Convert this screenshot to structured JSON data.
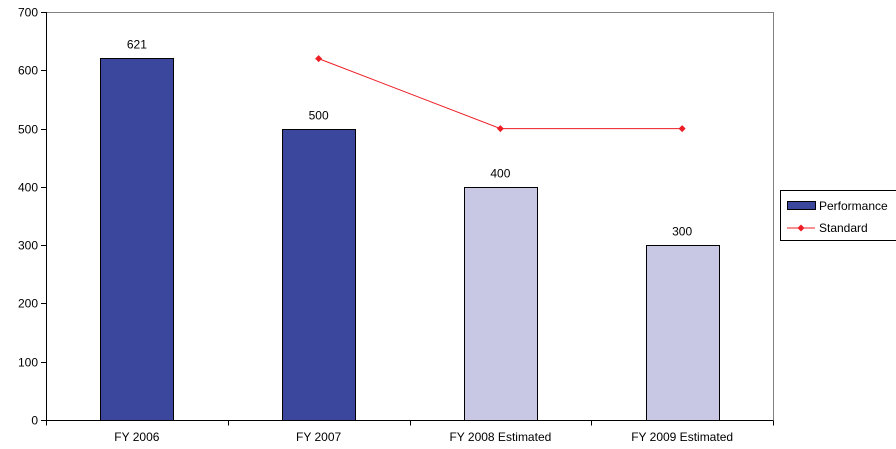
{
  "chart_data": {
    "type": "bar",
    "categories": [
      "FY 2006",
      "FY 2007",
      "FY 2008 Estimated",
      "FY 2009 Estimated"
    ],
    "series": [
      {
        "name": "Performance",
        "type": "bar",
        "values": [
          621,
          500,
          400,
          300
        ],
        "data_labels": [
          "621",
          "500",
          "400",
          "300"
        ],
        "point_colors": [
          "#3b479c",
          "#3b479c",
          "#c9c8e4",
          "#c9c8e4"
        ],
        "color": "#3b479c"
      },
      {
        "name": "Standard",
        "type": "line",
        "values": [
          null,
          620,
          500,
          500
        ],
        "color": "#ee1c24"
      }
    ],
    "title": "",
    "xlabel": "",
    "ylabel": "",
    "ylim": [
      0,
      700
    ],
    "yticks": [
      0,
      100,
      200,
      300,
      400,
      500,
      600,
      700
    ],
    "grid": false,
    "legend": "right"
  }
}
